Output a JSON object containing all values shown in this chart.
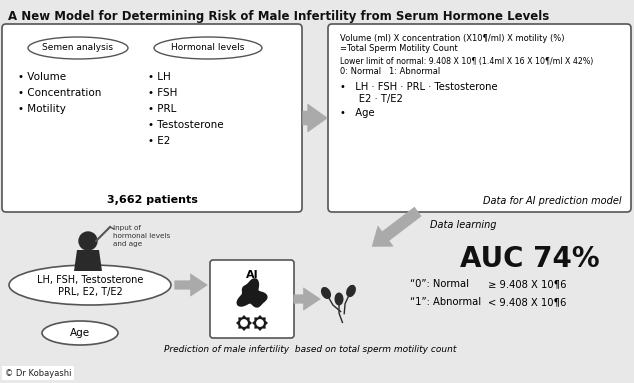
{
  "title": "A New Model for Determining Risk of Male Infertility from Serum Hormone Levels",
  "top_left_box": {
    "oval1_text": "Semen analysis",
    "oval2_text": "Hormonal levels",
    "left_items": [
      "• Volume",
      "• Concentration",
      "• Motility"
    ],
    "right_items": [
      "• LH",
      "• FSH",
      "• PRL",
      "• Testosterone",
      "• E2"
    ],
    "bottom_text": "3,662 patients"
  },
  "top_right_box": {
    "line1": "Volume (ml) X concentration (X10¶/ml) X motility (%)",
    "line2": "=Total Sperm Motility Count",
    "line3": "Lower limit of normal: 9.408 X 10¶ (1.4ml X 16 X 10¶/ml X 42%)",
    "line4": "0: Normal   1: Abnormal",
    "bullet1": "•   LH · FSH · PRL · Testosterone",
    "bullet1b": "      E2 · T/E2",
    "bullet2": "•   Age",
    "footer": "Data for AI prediction model"
  },
  "data_learning_label": "Data learning",
  "bottom_left_ellipse_text1": "LH, FSH, Testosterone",
  "bottom_left_ellipse_text2": "PRL, E2, T/E2",
  "bottom_age_text": "Age",
  "input_label": "Input of\nhormonal levels\nand age",
  "ai_label": "AI",
  "auc_text": "AUC 74%",
  "normal_label": "“0”: Normal",
  "normal_value": "≥ 9.408 X 10¶6",
  "abnormal_label": "“1”: Abnormal",
  "abnormal_value": "< 9.408 X 10¶6",
  "prediction_text": "Prediction of male infertility  based on total sperm motility count",
  "copyright": "© Dr Kobayashi",
  "bg_color": "#e8e8e8",
  "box_color": "#ffffff",
  "box_edge": "#555555",
  "arrow_color": "#aaaaaa",
  "text_color": "#111111"
}
